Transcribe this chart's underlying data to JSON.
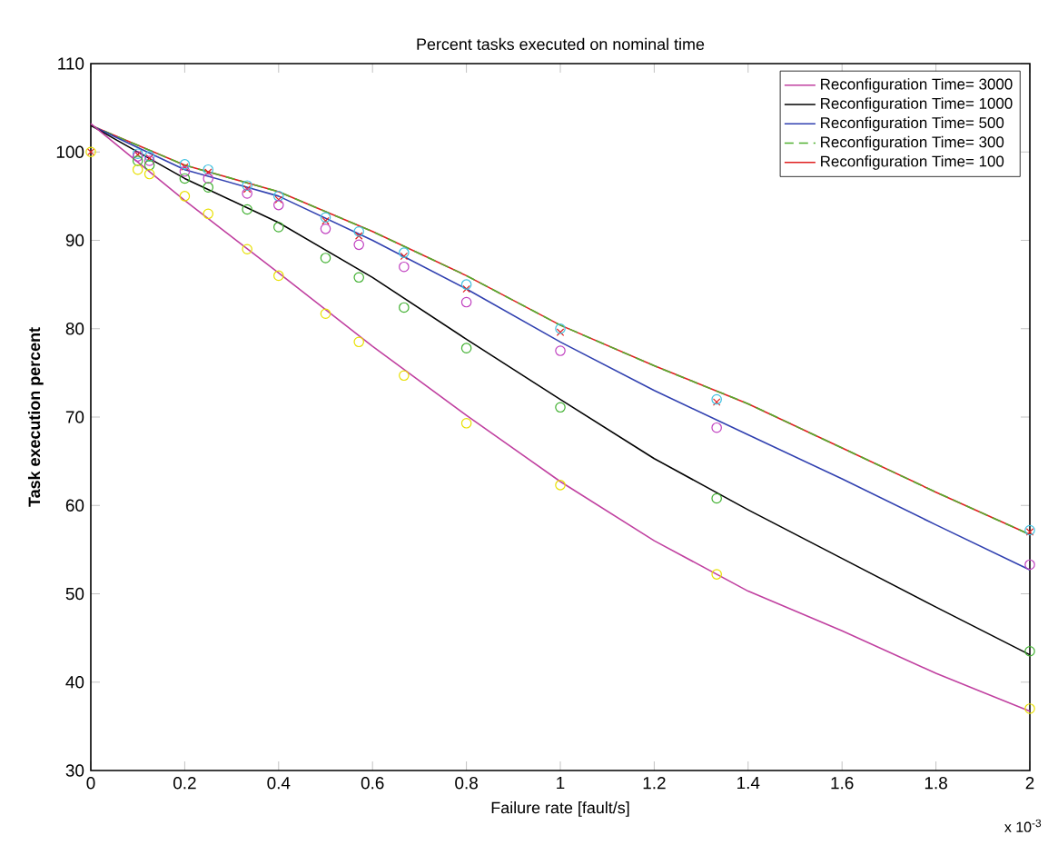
{
  "chart_data": {
    "type": "line",
    "title": "Percent tasks executed on nominal time",
    "xlabel": "Failure rate [fault/s]",
    "ylabel": "Task execution percent",
    "annotations": [
      "x 10$^{-3}$"
    ],
    "xlim": [
      0,
      2
    ],
    "ylim": [
      30,
      110
    ],
    "xticks": [
      0,
      0.2,
      0.4,
      0.6,
      0.8,
      1,
      1.2,
      1.4,
      1.6,
      1.8,
      2
    ],
    "yticks": [
      30,
      40,
      50,
      60,
      70,
      80,
      90,
      100,
      110
    ],
    "grid": false,
    "legend": "top right",
    "series": [
      {
        "name": "Reconfiguration Time= 3000",
        "color": "#c040a0",
        "line_style": "solid",
        "marker": "none",
        "x": [
          0,
          0.2,
          0.4,
          0.6,
          0.8,
          1,
          1.2,
          1.4,
          1.6,
          1.8,
          2
        ],
        "values": [
          103.2,
          94.5,
          86.3,
          78,
          70.2,
          62.7,
          56,
          50.3,
          45.8,
          41,
          36.7
        ]
      },
      {
        "name": "Reconfiguration Time= 1000",
        "color": "#000000",
        "line_style": "solid",
        "marker": "none",
        "x": [
          0,
          0.2,
          0.4,
          0.6,
          0.8,
          1,
          1.2,
          1.4,
          1.6,
          1.8,
          2
        ],
        "values": [
          103,
          97,
          92,
          85.8,
          78.8,
          72,
          65.3,
          59.5,
          54,
          48.5,
          43.1
        ]
      },
      {
        "name": "Reconfiguration Time= 500",
        "color": "#3040b0",
        "line_style": "solid",
        "marker": "none",
        "x": [
          0,
          0.2,
          0.4,
          0.6,
          0.8,
          1,
          1.2,
          1.4,
          1.6,
          1.8,
          2
        ],
        "values": [
          103,
          98,
          95,
          90,
          84.5,
          78.5,
          73,
          68,
          63,
          57.8,
          52.7
        ]
      },
      {
        "name": "Reconfiguration Time= 300",
        "color": "#50b030",
        "line_style": "dashed",
        "marker": "none",
        "x": [
          0,
          0.2,
          0.4,
          0.6,
          0.8,
          1,
          1.2,
          1.4,
          1.6,
          1.8,
          2
        ],
        "values": [
          103,
          98.5,
          95.5,
          91,
          86,
          80.4,
          75.8,
          71.5,
          66.5,
          61.5,
          56.7
        ]
      },
      {
        "name": "Reconfiguration Time= 100",
        "color": "#e02020",
        "line_style": "solid",
        "marker": "none",
        "x": [
          0,
          0.2,
          0.4,
          0.6,
          0.8,
          1,
          1.2,
          1.4,
          1.6,
          1.8,
          2
        ],
        "values": [
          103,
          98.5,
          95.5,
          91,
          86,
          80.4,
          75.8,
          71.5,
          66.5,
          61.5,
          56.7
        ]
      },
      {
        "type": "scatter",
        "color": "#e8e000",
        "marker": "circle",
        "x": [
          0,
          0.1,
          0.125,
          0.2,
          0.25,
          0.333,
          0.4,
          0.5,
          0.571,
          0.667,
          0.8,
          1,
          1.333,
          2
        ],
        "values": [
          100,
          98,
          97.5,
          95,
          93,
          89,
          86,
          81.7,
          78.5,
          74.7,
          69.3,
          62.3,
          52.2,
          37
        ]
      },
      {
        "type": "scatter",
        "color": "#40b030",
        "marker": "circle",
        "x": [
          0.1,
          0.125,
          0.2,
          0.25,
          0.333,
          0.4,
          0.5,
          0.571,
          0.667,
          0.8,
          1,
          1.333,
          2
        ],
        "values": [
          99,
          98.5,
          97,
          96,
          93.5,
          91.5,
          88,
          85.8,
          82.4,
          77.8,
          71.1,
          60.8,
          43.5
        ]
      },
      {
        "type": "scatter",
        "color": "#c040c0",
        "marker": "circle",
        "x": [
          0.1,
          0.125,
          0.2,
          0.25,
          0.333,
          0.4,
          0.5,
          0.571,
          0.667,
          0.8,
          1,
          1.333,
          2
        ],
        "values": [
          99.5,
          99,
          97.8,
          97,
          95.3,
          94,
          91.3,
          89.5,
          87,
          83,
          77.5,
          68.8,
          53.3
        ]
      },
      {
        "type": "scatter",
        "color": "#40c0e0",
        "marker": "circle",
        "x": [
          0.1,
          0.125,
          0.2,
          0.25,
          0.333,
          0.4,
          0.5,
          0.571,
          0.667,
          0.8,
          1,
          1.333,
          2
        ],
        "values": [
          99.8,
          99.5,
          98.6,
          98,
          96.2,
          95,
          92.6,
          91,
          88.6,
          85,
          80,
          72,
          57.2
        ]
      },
      {
        "type": "scatter",
        "color": "#e02020",
        "marker": "cross",
        "x": [
          0,
          0.1,
          0.125,
          0.2,
          0.25,
          0.333,
          0.4,
          0.5,
          0.571,
          0.667,
          0.8,
          1,
          1.333,
          2
        ],
        "values": [
          100,
          99.7,
          99.3,
          98.3,
          97.7,
          95.8,
          94.6,
          92.2,
          90.5,
          88.2,
          84.5,
          79.6,
          71.7,
          57
        ]
      }
    ]
  }
}
